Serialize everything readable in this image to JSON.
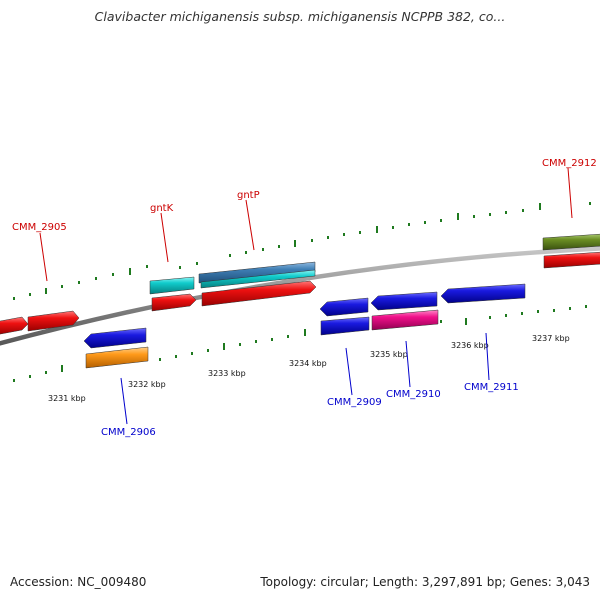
{
  "title": "Clavibacter michiganensis subsp. michiganensis NCPPB 382, co...",
  "footer": {
    "accession": "Accession: NC_009480",
    "topology": "Topology: circular; Length: 3,297,891 bp; Genes: 3,043"
  },
  "colors": {
    "backbone": "#8a8a8a",
    "tick": "#1f7a1f",
    "label_forward": "#cc0000",
    "label_reverse": "#0000cc",
    "red": "#ee1111",
    "blue": "#1a1ae0",
    "cyan": "#11cccc",
    "steelblue": "#3f7fb5",
    "orange": "#ff9a1a",
    "magenta": "#f0108a",
    "olive": "#6b8e23"
  },
  "scale_labels": [
    "3231 kbp",
    "3232 kbp",
    "3233 kbp",
    "3234 kbp",
    "3235 kbp",
    "3236 kbp",
    "3237 kbp"
  ],
  "gene_labels": [
    {
      "text": "CMM_2905",
      "strand": "forward"
    },
    {
      "text": "gntK",
      "strand": "forward"
    },
    {
      "text": "gntP",
      "strand": "forward"
    },
    {
      "text": "CMM_2912",
      "strand": "forward"
    },
    {
      "text": "CMM_2906",
      "strand": "reverse"
    },
    {
      "text": "CMM_2909",
      "strand": "reverse"
    },
    {
      "text": "CMM_2910",
      "strand": "reverse"
    },
    {
      "text": "CMM_2911",
      "strand": "reverse"
    }
  ]
}
